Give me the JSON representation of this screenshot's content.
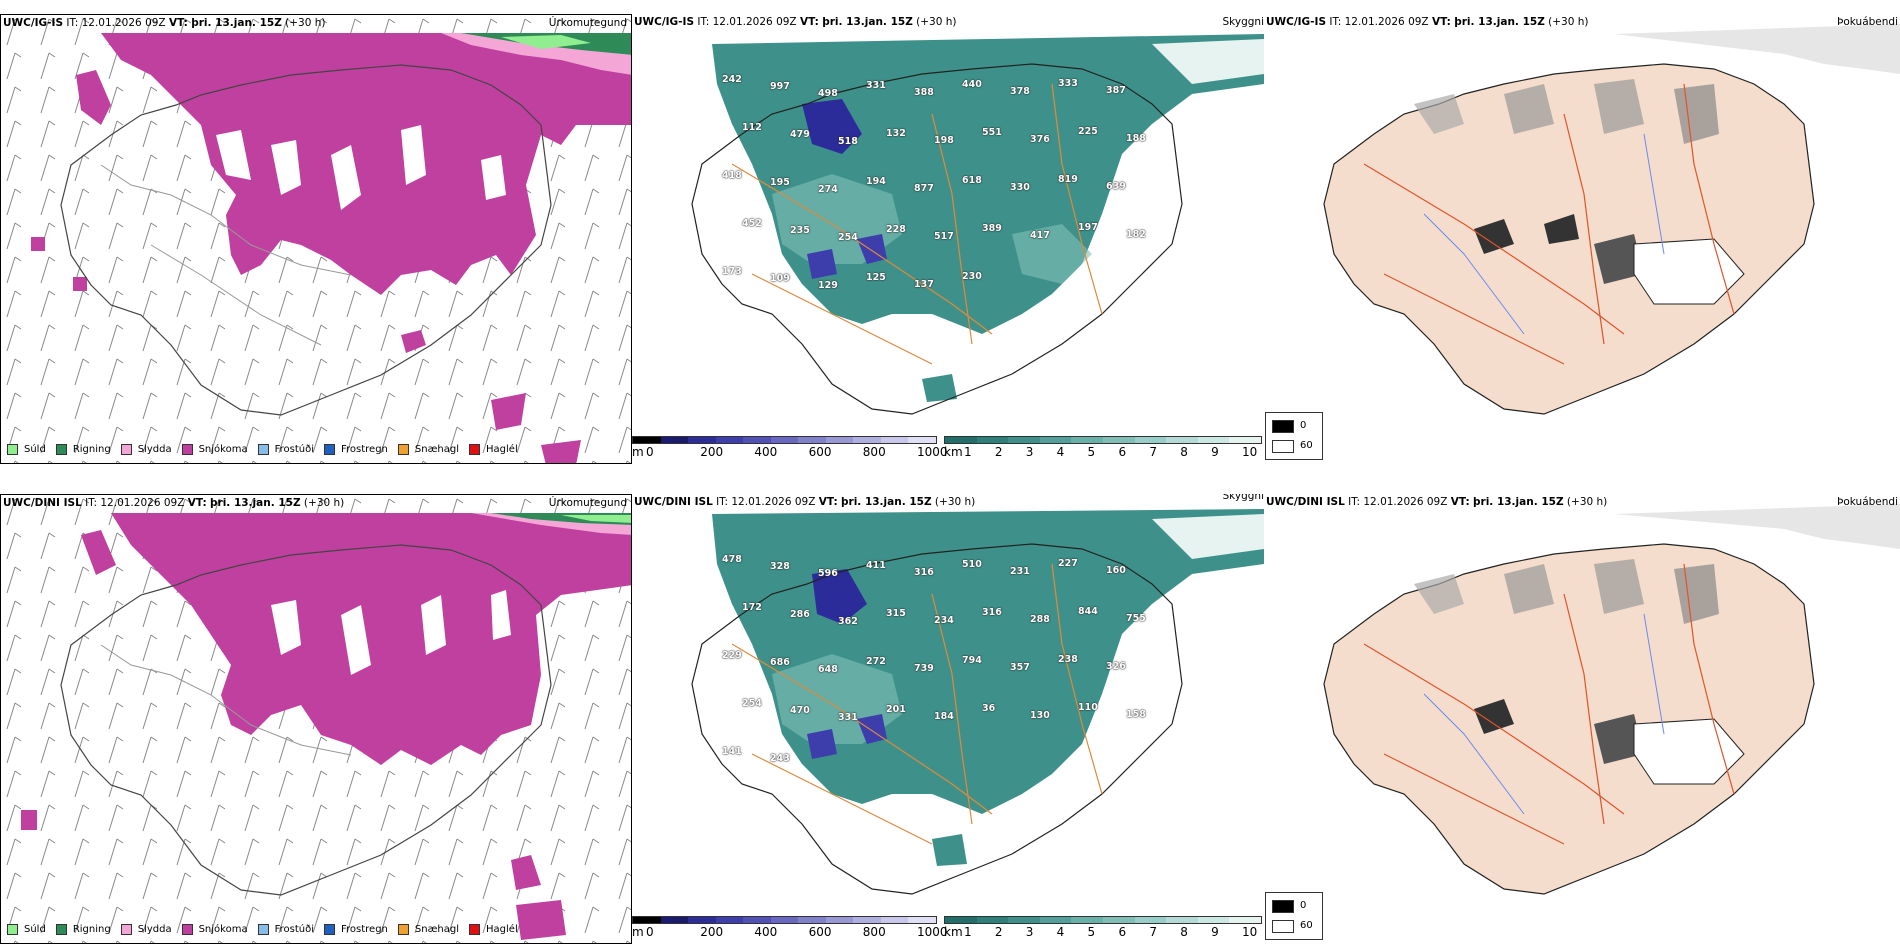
{
  "rows": [
    {
      "model": "UWC/IG-IS",
      "it_label": "IT:",
      "it_value": "12.01.2026 09Z",
      "vt_label": "VT:",
      "vt_value": "þri. 13.jan. 15Z",
      "lead": "(+30 h)"
    },
    {
      "model": "UWC/DINI ISL",
      "it_label": "IT:",
      "it_value": "12.01.2026 09Z",
      "vt_label": "VT:",
      "vt_value": "þri. 13.jan. 15Z",
      "lead": "(+30 h)"
    }
  ],
  "panel_titles": {
    "precip": "Úrkomutegund",
    "visibility": "Skyggni",
    "fog": "Þokuábendi"
  },
  "precip_legend": [
    {
      "label": "Súld",
      "color": "#90ee90"
    },
    {
      "label": "Rigning",
      "color": "#2e8b57"
    },
    {
      "label": "Slydda",
      "color": "#f4a6d7"
    },
    {
      "label": "Snjókoma",
      "color": "#c040a0"
    },
    {
      "label": "Frostúði",
      "color": "#87bde8"
    },
    {
      "label": "Frostregn",
      "color": "#1f5fbf"
    },
    {
      "label": "Snæhagl",
      "color": "#f0a030"
    },
    {
      "label": "Haglél",
      "color": "#e01010"
    }
  ],
  "cloud_base_scale": {
    "unit": "m",
    "ticks": [
      "0",
      "200",
      "400",
      "600",
      "800",
      "1000"
    ],
    "colors": [
      "#000000",
      "#1a1a6e",
      "#2b2b9a",
      "#3d3dac",
      "#5050b8",
      "#6868c4",
      "#8080cc",
      "#9898d6",
      "#b0b0e0",
      "#c8c8ea",
      "#e0e0f4"
    ]
  },
  "visibility_scale": {
    "unit": "km",
    "ticks": [
      "1",
      "2",
      "3",
      "4",
      "5",
      "6",
      "7",
      "8",
      "9",
      "10"
    ],
    "colors": [
      "#1f6f6a",
      "#2e807a",
      "#3e918a",
      "#52a19a",
      "#68b0a9",
      "#80bfb8",
      "#99cdc7",
      "#b3dad5",
      "#cde7e4",
      "#e6f3f1"
    ]
  },
  "fog_scale": {
    "min_label": "0",
    "max_label": "60"
  },
  "cloud_base_labels_top": [
    "242",
    "997",
    "498",
    "331",
    "388",
    "440",
    "378",
    "333",
    "387",
    "112",
    "479",
    "518",
    "132",
    "198",
    "551",
    "376",
    "225",
    "188",
    "418",
    "195",
    "274",
    "194",
    "877",
    "618",
    "330",
    "819",
    "639",
    "452",
    "235",
    "254",
    "228",
    "517",
    "389",
    "417",
    "197",
    "182",
    "173",
    "109",
    "129",
    "125",
    "137",
    "230"
  ],
  "cloud_base_labels_bottom": [
    "478",
    "328",
    "596",
    "411",
    "316",
    "510",
    "231",
    "227",
    "160",
    "172",
    "286",
    "362",
    "315",
    "234",
    "316",
    "288",
    "844",
    "755",
    "229",
    "686",
    "648",
    "272",
    "739",
    "794",
    "357",
    "238",
    "326",
    "254",
    "470",
    "331",
    "201",
    "184",
    "36",
    "130",
    "110",
    "158",
    "141",
    "243"
  ]
}
